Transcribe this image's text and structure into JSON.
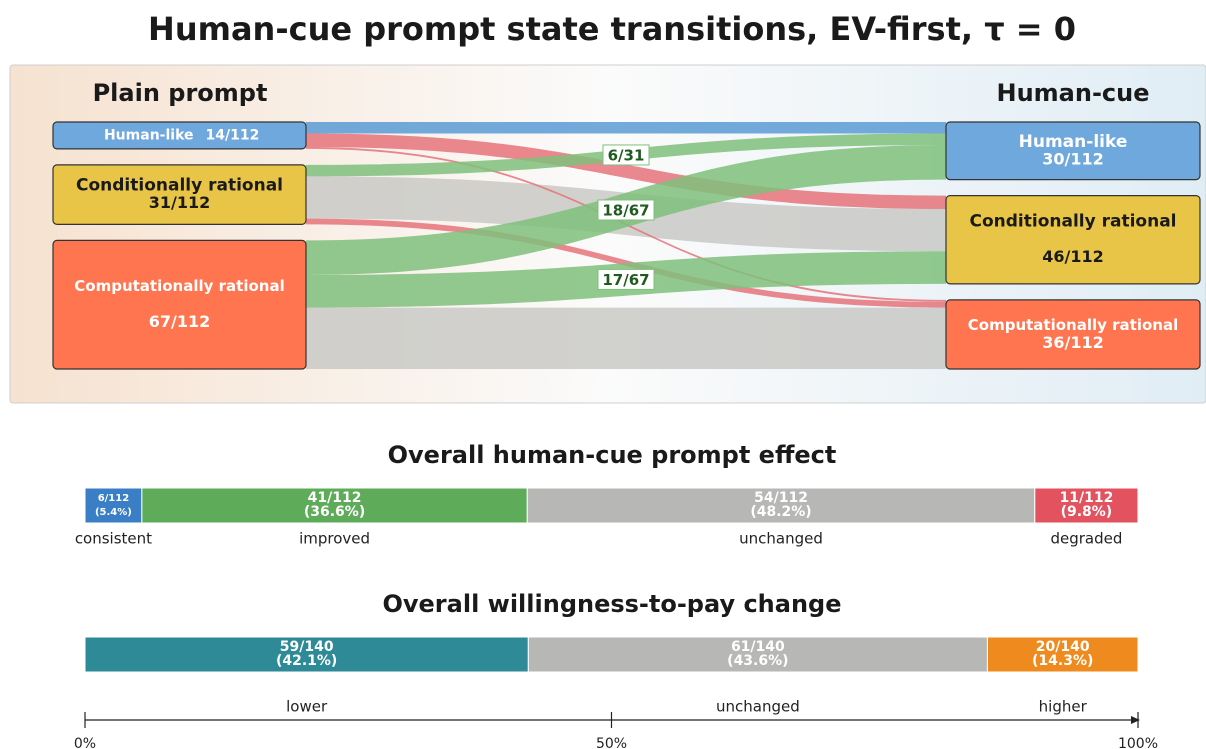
{
  "title": "Human-cue prompt state transitions, EV-first, τ = 0",
  "chart_data": [
    {
      "type": "sankey",
      "left_title": "Plain prompt",
      "right_title": "Human-cue",
      "left_nodes": [
        {
          "name": "Human-like",
          "value": 14,
          "label": "14/112",
          "color": "#6fa8dc"
        },
        {
          "name": "Conditionally rational",
          "value": 31,
          "label": "31/112",
          "color": "#e8c547"
        },
        {
          "name": "Computationally rational",
          "value": 67,
          "label": "67/112",
          "color": "#ff7550"
        }
      ],
      "right_nodes": [
        {
          "name": "Human-like",
          "value": 30,
          "label": "30/112",
          "color": "#6fa8dc"
        },
        {
          "name": "Conditionally rational",
          "value": 46,
          "label": "46/112",
          "color": "#e8c547"
        },
        {
          "name": "Computationally rational",
          "value": 36,
          "label": "36/112",
          "color": "#ff7550"
        }
      ],
      "flows": [
        {
          "source": 1,
          "target": 1,
          "value": 22,
          "color": "#c9c9c6"
        },
        {
          "source": 2,
          "target": 2,
          "value": 32,
          "color": "#c9c9c6"
        },
        {
          "source": 0,
          "target": 0,
          "value": 6,
          "color": "#5b9bd5"
        },
        {
          "source": 0,
          "target": 1,
          "value": 7,
          "color": "#e5737a"
        },
        {
          "source": 0,
          "target": 2,
          "value": 1,
          "color": "#e5737a"
        },
        {
          "source": 1,
          "target": 0,
          "value": 6,
          "color": "#7fbf7b",
          "value_label": "6/31"
        },
        {
          "source": 1,
          "target": 2,
          "value": 3,
          "color": "#e5737a"
        },
        {
          "source": 2,
          "target": 0,
          "value": 18,
          "color": "#7fbf7b",
          "value_label": "18/67"
        },
        {
          "source": 2,
          "target": 1,
          "value": 17,
          "color": "#7fbf7b",
          "value_label": "17/67"
        }
      ]
    },
    {
      "type": "stacked_bar",
      "title": "Overall human-cue prompt effect",
      "categories": [
        "consistent",
        "improved",
        "unchanged",
        "degraded"
      ],
      "values": [
        5.4,
        36.6,
        48.2,
        9.8
      ],
      "value_labels": [
        [
          "6/112",
          "(5.4%)"
        ],
        [
          "41/112",
          "(36.6%)"
        ],
        [
          "54/112",
          "(48.2%)"
        ],
        [
          "11/112",
          "(9.8%)"
        ]
      ],
      "colors": [
        "#3a7fc6",
        "#5eab5a",
        "#b7b8b6",
        "#e2535f"
      ],
      "xlim": [
        0,
        100
      ]
    },
    {
      "type": "stacked_bar",
      "title": "Overall willingness-to-pay change",
      "categories": [
        "lower",
        "unchanged",
        "higher"
      ],
      "values": [
        42.1,
        43.6,
        14.3
      ],
      "value_labels": [
        [
          "59/140",
          "(42.1%)"
        ],
        [
          "61/140",
          "(43.6%)"
        ],
        [
          "20/140",
          "(14.3%)"
        ]
      ],
      "colors": [
        "#2e8a96",
        "#b7b8b6",
        "#ef8a1e"
      ],
      "xlim": [
        0,
        100
      ],
      "xticks": [
        {
          "value": 0,
          "label": "0%"
        },
        {
          "value": 50,
          "label": "50%"
        },
        {
          "value": 100,
          "label": "100%"
        }
      ]
    }
  ]
}
